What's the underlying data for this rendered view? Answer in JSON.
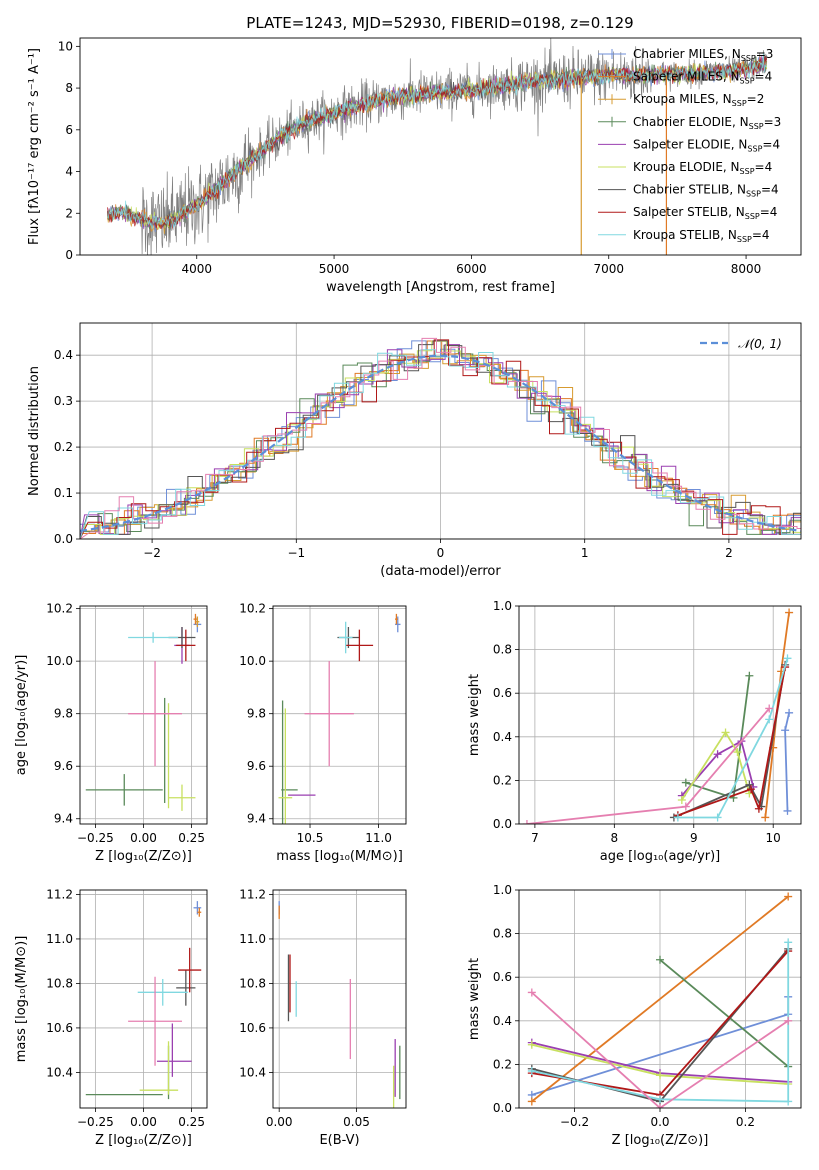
{
  "figure": {
    "title": "PLATE=1243, MJD=52930, FIBERID=0198, z=0.129"
  },
  "colors": {
    "Chabrier MILES": "#6f8fd8",
    "Salpeter MILES": "#e07a25",
    "Kroupa MILES": "#d79b30",
    "Chabrier ELODIE": "#5a8a5a",
    "Salpeter ELODIE": "#9a3fb0",
    "Kroupa ELODIE": "#c8e060",
    "Chabrier STELIB": "#555555",
    "Salpeter STELIB": "#b01818",
    "Kroupa STELIB": "#80d8e0",
    "pink": "#e57fb0",
    "data": "#808080"
  },
  "chart_data": [
    {
      "id": "spectrum",
      "type": "line",
      "title": "PLATE=1243, MJD=52930, FIBERID=0198, z=0.129",
      "xlabel": "wavelength [Angstrom, rest frame]",
      "ylabel": "Flux [fλ10⁻¹⁷ erg cm⁻² s⁻¹ A⁻¹]",
      "xlim": [
        3150,
        8400
      ],
      "ylim": [
        0,
        10.4
      ],
      "xticks": [
        4000,
        5000,
        6000,
        7000,
        8000
      ],
      "yticks": [
        0,
        2,
        4,
        6,
        8,
        10
      ],
      "grid": false,
      "legend_position": "top-right",
      "legend": [
        {
          "base": "Chabrier MILES, N",
          "sub": "SSP",
          "rest": "=3",
          "marker": "plus"
        },
        {
          "base": "Salpeter MILES, N",
          "sub": "SSP",
          "rest": "=4",
          "marker": "plus"
        },
        {
          "base": "Kroupa MILES, N",
          "sub": "SSP",
          "rest": "=2",
          "marker": "plus"
        },
        {
          "base": "Chabrier ELODIE, N",
          "sub": "SSP",
          "rest": "=3",
          "marker": "plus"
        },
        {
          "base": "Salpeter ELODIE, N",
          "sub": "SSP",
          "rest": "=4",
          "marker": "none"
        },
        {
          "base": "Kroupa ELODIE, N",
          "sub": "SSP",
          "rest": "=4",
          "marker": "none"
        },
        {
          "base": "Chabrier STELIB, N",
          "sub": "SSP",
          "rest": "=4",
          "marker": "none"
        },
        {
          "base": "Salpeter STELIB, N",
          "sub": "SSP",
          "rest": "=4",
          "marker": "none"
        },
        {
          "base": "Kroupa STELIB, N",
          "sub": "SSP",
          "rest": "=4",
          "marker": "none"
        }
      ],
      "series_continuum_anchors": {
        "x": [
          3350,
          3450,
          3550,
          3650,
          3750,
          3850,
          3950,
          4050,
          4150,
          4250,
          4400,
          4600,
          4800,
          5000,
          5200,
          5400,
          5600,
          5800,
          6000,
          6200,
          6400,
          6600,
          6800,
          7000,
          7200,
          7400,
          7600,
          7800,
          8000,
          8150
        ],
        "y": [
          1.9,
          2.1,
          1.8,
          1.6,
          1.5,
          1.8,
          2.2,
          2.6,
          3.2,
          3.8,
          4.6,
          5.6,
          6.4,
          6.8,
          7.2,
          7.5,
          7.7,
          7.8,
          7.9,
          8.1,
          8.3,
          8.4,
          8.5,
          8.6,
          8.6,
          8.7,
          8.7,
          8.8,
          8.9,
          9.2
        ]
      },
      "features": {
        "Kroupa MILES drop": {
          "x": 6800,
          "to": 0
        },
        "Salpeter MILES drop": {
          "x": 7420,
          "to": 0
        }
      }
    },
    {
      "id": "residual-histogram",
      "type": "bar",
      "xlabel": "(data-model)/error",
      "ylabel": "Normed distribution",
      "xlim": [
        -2.5,
        2.5
      ],
      "ylim": [
        0,
        0.47
      ],
      "xticks": [
        -2,
        -1,
        0,
        1,
        2
      ],
      "yticks": [
        0.0,
        0.1,
        0.2,
        0.3,
        0.4
      ],
      "grid": true,
      "legend_position": "top-right",
      "legend": [
        {
          "label": "𝒩(0, 1)",
          "style": "dashed"
        }
      ],
      "bin_width": 0.1,
      "bin_start": -2.5,
      "reference_curve": {
        "name": "𝒩(0, 1)",
        "mean": 0,
        "sigma": 1
      }
    },
    {
      "id": "age-vs-Z",
      "type": "scatter",
      "xlabel": "Z [log₁₀(Z/Z⊙)]",
      "ylabel": "age  [log₁₀(age/yr)]",
      "xlim": [
        -0.33,
        0.33
      ],
      "ylim": [
        9.38,
        10.21
      ],
      "xticks": [
        -0.25,
        0.0,
        0.25
      ],
      "yticks": [
        9.4,
        9.6,
        9.8,
        10.0,
        10.2
      ],
      "grid": true,
      "points": [
        {
          "model": "Chabrier MILES",
          "x": 0.28,
          "y": 10.14,
          "xerr": 0.02,
          "yerr": 0.03
        },
        {
          "model": "Salpeter MILES",
          "x": 0.27,
          "y": 10.16,
          "xerr": 0.01,
          "yerr": 0.02
        },
        {
          "model": "Kroupa MILES",
          "x": 0.28,
          "y": 10.15,
          "xerr": 0.01,
          "yerr": 0.02
        },
        {
          "model": "Chabrier ELODIE",
          "x": -0.1,
          "y": 9.51,
          "xerr": 0.2,
          "yerr": 0.06
        },
        {
          "model": "Chabrier ELODIE",
          "x": 0.11,
          "y": 9.66,
          "xerr": 0.0,
          "yerr": 0.2
        },
        {
          "model": "Salpeter ELODIE",
          "x": 0.2,
          "y": 10.06,
          "xerr": 0.04,
          "yerr": 0.07
        },
        {
          "model": "Kroupa ELODIE",
          "x": 0.2,
          "y": 9.48,
          "xerr": 0.07,
          "yerr": 0.05
        },
        {
          "model": "Kroupa ELODIE",
          "x": 0.13,
          "y": 9.64,
          "xerr": 0.0,
          "yerr": 0.2
        },
        {
          "model": "Chabrier STELIB",
          "x": 0.2,
          "y": 10.09,
          "xerr": 0.07,
          "yerr": 0.04
        },
        {
          "model": "Salpeter STELIB",
          "x": 0.22,
          "y": 10.06,
          "xerr": 0.05,
          "yerr": 0.06
        },
        {
          "model": "Kroupa STELIB",
          "x": 0.05,
          "y": 10.09,
          "xerr": 0.13,
          "yerr": 0.02
        },
        {
          "model": "pink",
          "x": 0.06,
          "y": 9.8,
          "xerr": 0.14,
          "yerr": 0.2
        }
      ]
    },
    {
      "id": "age-vs-mass",
      "type": "scatter",
      "xlabel": "mass [log₁₀(M/M⊙)]",
      "ylabel": "",
      "xlim": [
        10.23,
        11.2
      ],
      "ylim": [
        9.38,
        10.21
      ],
      "xticks": [
        10.5,
        11.0
      ],
      "yticks": [
        9.4,
        9.6,
        9.8,
        10.0,
        10.2
      ],
      "grid": true,
      "points": [
        {
          "model": "Chabrier MILES",
          "x": 11.14,
          "y": 10.14,
          "xerr": 0.02,
          "yerr": 0.03
        },
        {
          "model": "Salpeter MILES",
          "x": 11.13,
          "y": 10.16,
          "xerr": 0.01,
          "yerr": 0.02
        },
        {
          "model": "Chabrier ELODIE",
          "x": 10.3,
          "y": 9.6,
          "xerr": 0.0,
          "yerr": 0.25
        },
        {
          "model": "Chabrier ELODIE",
          "x": 10.35,
          "y": 9.51,
          "xerr": 0.06,
          "yerr": 0.0
        },
        {
          "model": "Salpeter ELODIE",
          "x": 10.44,
          "y": 9.49,
          "xerr": 0.1,
          "yerr": 0.0
        },
        {
          "model": "Kroupa ELODIE",
          "x": 10.32,
          "y": 9.6,
          "xerr": 0.0,
          "yerr": 0.22
        },
        {
          "model": "Kroupa ELODIE",
          "x": 10.32,
          "y": 9.48,
          "xerr": 0.05,
          "yerr": 0.0
        },
        {
          "model": "Chabrier STELIB",
          "x": 10.78,
          "y": 10.09,
          "xerr": 0.08,
          "yerr": 0.04
        },
        {
          "model": "Salpeter STELIB",
          "x": 10.86,
          "y": 10.06,
          "xerr": 0.1,
          "yerr": 0.06
        },
        {
          "model": "Kroupa STELIB",
          "x": 10.76,
          "y": 10.09,
          "xerr": 0.05,
          "yerr": 0.06
        },
        {
          "model": "pink",
          "x": 10.64,
          "y": 9.8,
          "xerr": 0.18,
          "yerr": 0.2
        }
      ]
    },
    {
      "id": "mass-weight-vs-age",
      "type": "line",
      "xlabel": "age  [log₁₀(age/yr)]",
      "ylabel": "mass weight",
      "xlim": [
        6.8,
        10.35
      ],
      "ylim": [
        0,
        1.0
      ],
      "xticks": [
        7,
        8,
        9,
        10
      ],
      "yticks": [
        0.0,
        0.2,
        0.4,
        0.6,
        0.8,
        1.0
      ],
      "grid": true,
      "series": [
        {
          "model": "Chabrier MILES",
          "x": [
            10.18,
            10.15,
            10.2
          ],
          "y": [
            0.06,
            0.43,
            0.51
          ]
        },
        {
          "model": "Salpeter MILES",
          "x": [
            9.9,
            10.0,
            10.1,
            10.2
          ],
          "y": [
            0.03,
            0.35,
            0.7,
            0.97
          ]
        },
        {
          "model": "Chabrier ELODIE",
          "x": [
            8.9,
            9.5,
            9.7
          ],
          "y": [
            0.19,
            0.12,
            0.68
          ]
        },
        {
          "model": "Salpeter ELODIE",
          "x": [
            8.85,
            9.3,
            9.6,
            9.75
          ],
          "y": [
            0.13,
            0.32,
            0.38,
            0.17
          ]
        },
        {
          "model": "Kroupa ELODIE",
          "x": [
            8.85,
            9.4,
            9.55,
            9.7
          ],
          "y": [
            0.11,
            0.42,
            0.33,
            0.14
          ]
        },
        {
          "model": "Chabrier STELIB",
          "x": [
            8.75,
            9.7,
            9.85,
            10.15
          ],
          "y": [
            0.03,
            0.18,
            0.08,
            0.73
          ]
        },
        {
          "model": "Salpeter STELIB",
          "x": [
            8.8,
            9.72,
            9.82,
            10.15
          ],
          "y": [
            0.04,
            0.16,
            0.07,
            0.72
          ]
        },
        {
          "model": "Kroupa STELIB",
          "x": [
            8.8,
            9.3,
            9.95,
            10.18
          ],
          "y": [
            0.03,
            0.03,
            0.48,
            0.76
          ]
        },
        {
          "model": "pink",
          "x": [
            6.9,
            8.9,
            9.95
          ],
          "y": [
            0.0,
            0.08,
            0.53
          ]
        }
      ]
    },
    {
      "id": "mass-vs-Z",
      "type": "scatter",
      "xlabel": "Z [log₁₀(Z/Z⊙)]",
      "ylabel": "mass [log₁₀(M/M⊙)]",
      "xlim": [
        -0.33,
        0.33
      ],
      "ylim": [
        10.24,
        11.22
      ],
      "xticks": [
        -0.25,
        0.0,
        0.25
      ],
      "yticks": [
        10.4,
        10.6,
        10.8,
        11.0,
        11.2
      ],
      "grid": true,
      "points": [
        {
          "model": "Chabrier MILES",
          "x": 0.28,
          "y": 11.14,
          "xerr": 0.02,
          "yerr": 0.03
        },
        {
          "model": "Salpeter MILES",
          "x": 0.29,
          "y": 11.12,
          "xerr": 0.01,
          "yerr": 0.02
        },
        {
          "model": "Chabrier ELODIE",
          "x": -0.1,
          "y": 10.3,
          "xerr": 0.2,
          "yerr": 0.0
        },
        {
          "model": "Chabrier ELODIE",
          "x": 0.13,
          "y": 10.4,
          "xerr": 0.0,
          "yerr": 0.12
        },
        {
          "model": "Salpeter ELODIE",
          "x": 0.16,
          "y": 10.45,
          "xerr": 0.09,
          "yerr": 0.0
        },
        {
          "model": "Salpeter ELODIE",
          "x": 0.15,
          "y": 10.5,
          "xerr": 0.0,
          "yerr": 0.12
        },
        {
          "model": "Kroupa ELODIE",
          "x": 0.08,
          "y": 10.32,
          "xerr": 0.1,
          "yerr": 0.0
        },
        {
          "model": "Kroupa ELODIE",
          "x": 0.13,
          "y": 10.42,
          "xerr": 0.0,
          "yerr": 0.12
        },
        {
          "model": "Chabrier STELIB",
          "x": 0.22,
          "y": 10.78,
          "xerr": 0.05,
          "yerr": 0.08
        },
        {
          "model": "Salpeter STELIB",
          "x": 0.24,
          "y": 10.86,
          "xerr": 0.06,
          "yerr": 0.1
        },
        {
          "model": "Kroupa STELIB",
          "x": 0.1,
          "y": 10.76,
          "xerr": 0.13,
          "yerr": 0.06
        },
        {
          "model": "pink",
          "x": 0.06,
          "y": 10.63,
          "xerr": 0.14,
          "yerr": 0.2
        }
      ]
    },
    {
      "id": "mass-vs-ebv",
      "type": "scatter",
      "xlabel": "E(B-V)",
      "ylabel": "",
      "xlim": [
        -0.004,
        0.082
      ],
      "ylim": [
        10.24,
        11.22
      ],
      "xticks": [
        0.0,
        0.05
      ],
      "yticks": [
        10.4,
        10.6,
        10.8,
        11.0,
        11.2
      ],
      "grid": true,
      "points": [
        {
          "model": "Chabrier MILES",
          "x": 0.0,
          "y": 11.14,
          "xerr": 0.0,
          "yerr": 0.03
        },
        {
          "model": "Salpeter MILES",
          "x": 0.0,
          "y": 11.12,
          "xerr": 0.0,
          "yerr": 0.03
        },
        {
          "model": "Chabrier STELIB",
          "x": 0.006,
          "y": 10.78,
          "xerr": 0.0,
          "yerr": 0.15
        },
        {
          "model": "Salpeter STELIB",
          "x": 0.007,
          "y": 10.8,
          "xerr": 0.0,
          "yerr": 0.13
        },
        {
          "model": "Kroupa STELIB",
          "x": 0.011,
          "y": 10.73,
          "xerr": 0.0,
          "yerr": 0.08
        },
        {
          "model": "pink",
          "x": 0.046,
          "y": 10.64,
          "xerr": 0.0,
          "yerr": 0.18
        },
        {
          "model": "Kroupa ELODIE",
          "x": 0.074,
          "y": 10.33,
          "xerr": 0.0,
          "yerr": 0.1
        },
        {
          "model": "Salpeter ELODIE",
          "x": 0.075,
          "y": 10.42,
          "xerr": 0.0,
          "yerr": 0.13
        },
        {
          "model": "Chabrier ELODIE",
          "x": 0.078,
          "y": 10.4,
          "xerr": 0.0,
          "yerr": 0.12
        }
      ]
    },
    {
      "id": "mass-weight-vs-Z",
      "type": "line",
      "xlabel": "Z [log₁₀(Z/Z⊙)]",
      "ylabel": "mass weight",
      "xlim": [
        -0.33,
        0.33
      ],
      "ylim": [
        0,
        1.0
      ],
      "xticks": [
        -0.2,
        0.0,
        0.2
      ],
      "yticks": [
        0.0,
        0.2,
        0.4,
        0.6,
        0.8,
        1.0
      ],
      "grid": true,
      "series": [
        {
          "model": "Chabrier MILES",
          "x": [
            -0.3,
            0.3,
            0.3
          ],
          "y": [
            0.06,
            0.43,
            0.51
          ]
        },
        {
          "model": "Salpeter MILES",
          "x": [
            -0.3,
            0.3
          ],
          "y": [
            0.03,
            0.97
          ]
        },
        {
          "model": "Chabrier ELODIE",
          "x": [
            0.0,
            0.3
          ],
          "y": [
            0.68,
            0.19
          ]
        },
        {
          "model": "Salpeter ELODIE",
          "x": [
            -0.3,
            0.0,
            0.3
          ],
          "y": [
            0.3,
            0.16,
            0.12
          ]
        },
        {
          "model": "Kroupa ELODIE",
          "x": [
            -0.3,
            0.0,
            0.3
          ],
          "y": [
            0.29,
            0.15,
            0.11
          ]
        },
        {
          "model": "Chabrier STELIB",
          "x": [
            -0.3,
            0.0,
            0.3
          ],
          "y": [
            0.18,
            0.03,
            0.73
          ]
        },
        {
          "model": "Salpeter STELIB",
          "x": [
            -0.3,
            0.0,
            0.3
          ],
          "y": [
            0.16,
            0.06,
            0.72
          ]
        },
        {
          "model": "Kroupa STELIB",
          "x": [
            -0.3,
            0.0,
            0.3,
            0.3
          ],
          "y": [
            0.17,
            0.04,
            0.03,
            0.76
          ]
        },
        {
          "model": "pink",
          "x": [
            -0.3,
            0.0,
            0.3
          ],
          "y": [
            0.53,
            0.0,
            0.4
          ]
        }
      ]
    }
  ]
}
